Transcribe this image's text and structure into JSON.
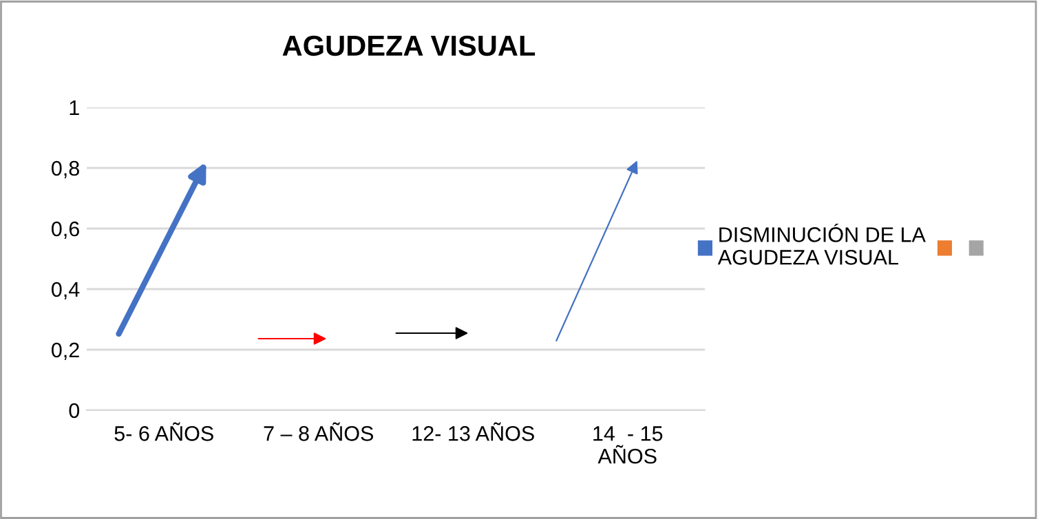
{
  "chart_data": {
    "type": "bar",
    "title": "AGUDEZA VISUAL",
    "categories": [
      "5- 6 AÑOS",
      "7 – 8 AÑOS",
      "12- 13 AÑOS",
      "14  - 15\nAÑOS"
    ],
    "series": [
      {
        "name": "DISMINUCIÓN DE LA\nAGUDEZA VISUAL",
        "color": "#4472c4",
        "values": [
          null,
          null,
          null,
          null
        ]
      },
      {
        "color": "#ed7d31",
        "values": [
          null,
          null,
          null,
          null
        ]
      },
      {
        "color": "#a5a5a5",
        "values": [
          null,
          null,
          null,
          null
        ]
      }
    ],
    "ylim": [
      0,
      1
    ],
    "yticks": [
      {
        "value": 0,
        "label": "0"
      },
      {
        "value": 0.2,
        "label": "0,2"
      },
      {
        "value": 0.4,
        "label": "0,4"
      },
      {
        "value": 0.6,
        "label": "0,6"
      },
      {
        "value": 0.8,
        "label": "0,8"
      },
      {
        "value": 1,
        "label": "1"
      }
    ],
    "grid": "y",
    "legend": "right"
  }
}
